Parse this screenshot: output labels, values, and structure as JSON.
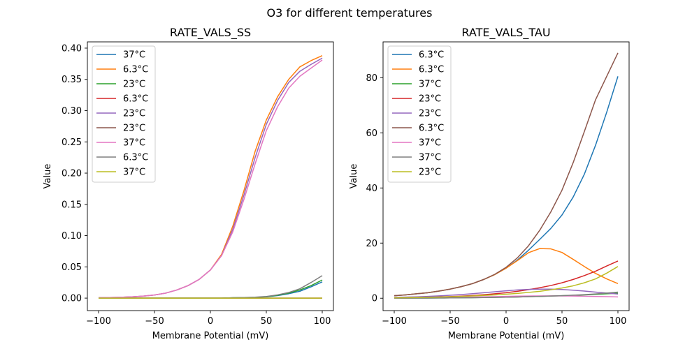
{
  "figure": {
    "suptitle": "O3 for different temperatures"
  },
  "chart_data": [
    {
      "type": "line",
      "title": "RATE_VALS_SS",
      "xlabel": "Membrane Potential (mV)",
      "ylabel": "Value",
      "xlim": [
        -110,
        110
      ],
      "ylim": [
        -0.02,
        0.41
      ],
      "xticks": [
        -100,
        -50,
        0,
        50,
        100
      ],
      "yticks": [
        0.0,
        0.05,
        0.1,
        0.15,
        0.2,
        0.25,
        0.3,
        0.35,
        0.4
      ],
      "ytick_labels": [
        "0.00",
        "0.05",
        "0.10",
        "0.15",
        "0.20",
        "0.25",
        "0.30",
        "0.35",
        "0.40"
      ],
      "grid": false,
      "legend_position": "upper left",
      "x": [
        -100,
        -90,
        -80,
        -70,
        -60,
        -50,
        -40,
        -30,
        -20,
        -10,
        0,
        10,
        20,
        30,
        40,
        50,
        60,
        70,
        80,
        90,
        100
      ],
      "series": [
        {
          "name": "37°C",
          "color": "#1f77b4",
          "values": [
            0,
            0,
            0,
            0,
            0,
            0,
            0,
            0,
            0,
            0,
            0,
            0,
            0.0005,
            0.0008,
            0.001,
            0.002,
            0.004,
            0.007,
            0.011,
            0.018,
            0.026
          ]
        },
        {
          "name": "6.3°C",
          "color": "#ff7f0e",
          "values": [
            0.0006,
            0.0009,
            0.0014,
            0.0021,
            0.0032,
            0.005,
            0.008,
            0.013,
            0.02,
            0.03,
            0.045,
            0.07,
            0.115,
            0.172,
            0.235,
            0.285,
            0.322,
            0.35,
            0.37,
            0.38,
            0.388
          ]
        },
        {
          "name": "23°C",
          "color": "#2ca02c",
          "values": [
            0,
            0,
            0,
            0,
            0,
            0,
            0,
            0,
            0,
            0,
            0,
            0,
            0.0005,
            0.0008,
            0.0012,
            0.0022,
            0.0045,
            0.008,
            0.013,
            0.02,
            0.029
          ]
        },
        {
          "name": "6.3°C",
          "color": "#d62728",
          "values": [
            0,
            0,
            0,
            0,
            0,
            0,
            0,
            0,
            0,
            0,
            0,
            0,
            0,
            0,
            0,
            0,
            0,
            0,
            0,
            0,
            0
          ]
        },
        {
          "name": "23°C",
          "color": "#9467bd",
          "values": [
            0.0006,
            0.0009,
            0.0014,
            0.0021,
            0.0032,
            0.005,
            0.008,
            0.013,
            0.02,
            0.03,
            0.045,
            0.068,
            0.11,
            0.165,
            0.225,
            0.278,
            0.316,
            0.345,
            0.363,
            0.374,
            0.384
          ]
        },
        {
          "name": "23°C",
          "color": "#8c564b",
          "values": [
            0,
            0,
            0,
            0,
            0,
            0,
            0,
            0,
            0,
            0,
            0,
            0,
            0,
            0,
            0,
            0,
            0,
            0,
            0,
            0,
            0
          ]
        },
        {
          "name": "37°C",
          "color": "#e377c2",
          "values": [
            0.0006,
            0.0009,
            0.0014,
            0.0021,
            0.0032,
            0.005,
            0.008,
            0.013,
            0.02,
            0.03,
            0.045,
            0.068,
            0.106,
            0.158,
            0.215,
            0.268,
            0.306,
            0.336,
            0.355,
            0.368,
            0.381
          ]
        },
        {
          "name": "6.3°C",
          "color": "#7f7f7f",
          "values": [
            0,
            0,
            0,
            0,
            0,
            0,
            0,
            0,
            0,
            0,
            0,
            0,
            0.0006,
            0.001,
            0.0015,
            0.0026,
            0.0052,
            0.009,
            0.015,
            0.025,
            0.036
          ]
        },
        {
          "name": "37°C",
          "color": "#bcbd22",
          "values": [
            0,
            0,
            0,
            0,
            0,
            0,
            0,
            0,
            0,
            0,
            0,
            0,
            0,
            0,
            0,
            0,
            0,
            0,
            0,
            0,
            0
          ]
        }
      ]
    },
    {
      "type": "line",
      "title": "RATE_VALS_TAU",
      "xlabel": "Membrane Potential (mV)",
      "ylabel": "Value",
      "xlim": [
        -110,
        110
      ],
      "ylim": [
        -4.5,
        93
      ],
      "xticks": [
        -100,
        -50,
        0,
        50,
        100
      ],
      "yticks": [
        0,
        20,
        40,
        60,
        80
      ],
      "ytick_labels": [
        "0",
        "20",
        "40",
        "60",
        "80"
      ],
      "grid": false,
      "legend_position": "upper left",
      "x": [
        -100,
        -90,
        -80,
        -70,
        -60,
        -50,
        -40,
        -30,
        -20,
        -10,
        0,
        10,
        20,
        30,
        40,
        50,
        60,
        70,
        80,
        90,
        100
      ],
      "series": [
        {
          "name": "6.3°C",
          "color": "#1f77b4",
          "values": [
            0.9,
            1.2,
            1.6,
            2.0,
            2.6,
            3.3,
            4.2,
            5.3,
            6.8,
            8.6,
            10.9,
            13.8,
            17.4,
            21.3,
            25.3,
            30.2,
            36.7,
            45.0,
            55.5,
            67.5,
            80.5
          ]
        },
        {
          "name": "6.3°C",
          "color": "#ff7f0e",
          "values": [
            0.9,
            1.2,
            1.6,
            2.0,
            2.6,
            3.3,
            4.2,
            5.3,
            6.8,
            8.6,
            10.9,
            13.6,
            16.5,
            18.0,
            17.9,
            16.6,
            14.1,
            11.5,
            9.0,
            7.0,
            5.3
          ]
        },
        {
          "name": "37°C",
          "color": "#2ca02c",
          "values": [
            0.03,
            0.04,
            0.05,
            0.07,
            0.09,
            0.12,
            0.15,
            0.19,
            0.24,
            0.3,
            0.37,
            0.45,
            0.55,
            0.66,
            0.78,
            0.9,
            1.05,
            1.2,
            1.4,
            1.6,
            1.8
          ]
        },
        {
          "name": "23°C",
          "color": "#d62728",
          "values": [
            0.15,
            0.2,
            0.27,
            0.36,
            0.46,
            0.6,
            0.77,
            0.98,
            1.25,
            1.6,
            2.0,
            2.5,
            3.1,
            3.8,
            4.6,
            5.6,
            6.8,
            8.2,
            9.8,
            11.7,
            13.5
          ]
        },
        {
          "name": "23°C",
          "color": "#9467bd",
          "values": [
            0.3,
            0.4,
            0.5,
            0.66,
            0.84,
            1.06,
            1.33,
            1.63,
            1.98,
            2.33,
            2.7,
            3.0,
            3.2,
            3.3,
            3.3,
            3.15,
            2.9,
            2.6,
            2.2,
            1.85,
            1.5
          ]
        },
        {
          "name": "6.3°C",
          "color": "#8c564b",
          "values": [
            0.9,
            1.2,
            1.6,
            2.0,
            2.6,
            3.3,
            4.2,
            5.3,
            6.8,
            8.7,
            11.2,
            14.6,
            19.0,
            24.6,
            31.3,
            39.2,
            49.2,
            60.5,
            72.0,
            80.5,
            89.0
          ]
        },
        {
          "name": "37°C",
          "color": "#e377c2",
          "values": [
            0.07,
            0.09,
            0.12,
            0.16,
            0.2,
            0.26,
            0.33,
            0.41,
            0.5,
            0.58,
            0.67,
            0.74,
            0.8,
            0.83,
            0.84,
            0.82,
            0.78,
            0.72,
            0.64,
            0.56,
            0.48
          ]
        },
        {
          "name": "37°C",
          "color": "#7f7f7f",
          "values": [
            0.03,
            0.04,
            0.05,
            0.07,
            0.09,
            0.12,
            0.15,
            0.19,
            0.24,
            0.3,
            0.37,
            0.45,
            0.55,
            0.66,
            0.78,
            0.92,
            1.1,
            1.3,
            1.55,
            1.85,
            2.2
          ]
        },
        {
          "name": "23°C",
          "color": "#bcbd22",
          "values": [
            0.15,
            0.2,
            0.26,
            0.33,
            0.42,
            0.53,
            0.66,
            0.82,
            1.0,
            1.2,
            1.45,
            1.75,
            2.1,
            2.5,
            3.05,
            3.7,
            4.5,
            5.6,
            7.0,
            9.1,
            11.5
          ]
        }
      ]
    }
  ]
}
